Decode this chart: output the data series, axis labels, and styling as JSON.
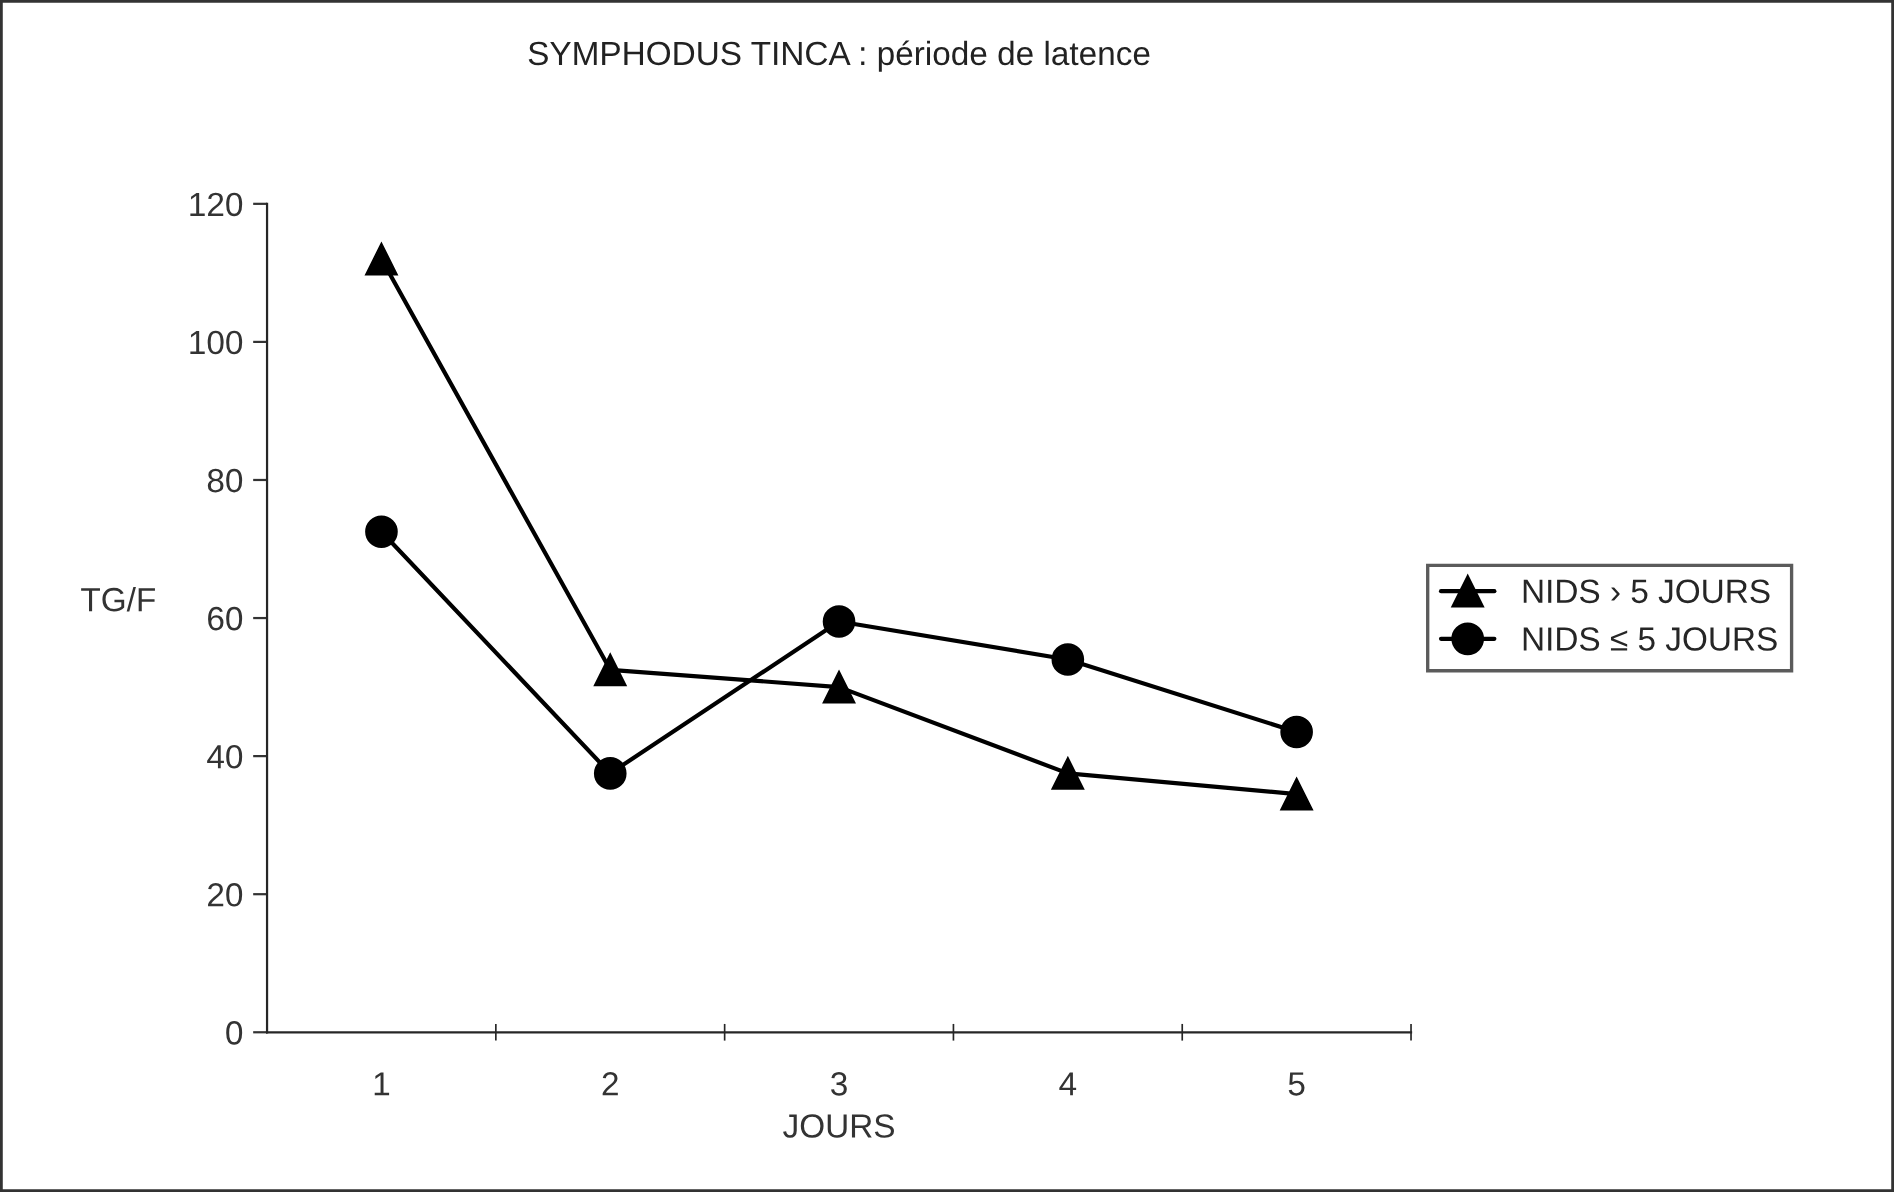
{
  "chart_data": {
    "type": "line",
    "title": "SYMPHODUS TINCA : période de latence",
    "xlabel": "JOURS",
    "ylabel": "TG/F",
    "categories": [
      "1",
      "2",
      "3",
      "4",
      "5"
    ],
    "series": [
      {
        "name": "NIDS › 5 JOURS",
        "color": "#000000",
        "marker": "triangle",
        "values": [
          112,
          52.5,
          50,
          37.5,
          34.5
        ]
      },
      {
        "name": "NIDS ≤ 5 JOURS",
        "color": "#000000",
        "marker": "circle",
        "values": [
          72.5,
          37.5,
          59.5,
          54,
          43.5
        ]
      }
    ],
    "ylim": [
      0,
      120
    ],
    "yticks": [
      0,
      20,
      40,
      60,
      80,
      100,
      120
    ],
    "grid": false,
    "legend": "right",
    "line_style": "solid"
  }
}
